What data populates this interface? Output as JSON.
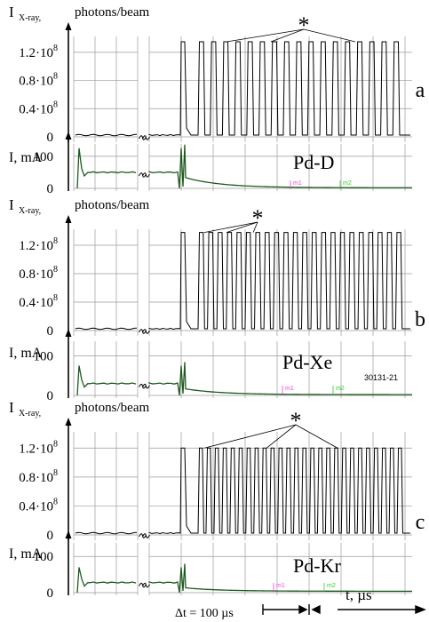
{
  "chart_data": [
    {
      "type": "line",
      "panel": "a",
      "xray": {
        "ylabel": "I",
        "ylabel_sub": "X-ray,",
        "unit": "photons/beam",
        "yticks": [
          "1.2·10",
          "0.8·10",
          "0.4·10",
          "0"
        ],
        "ytick_exp": "8",
        "ytick_values": [
          120000000.0,
          80000000.0,
          40000000.0,
          0
        ],
        "ylim": [
          0,
          140000000.0
        ],
        "star": "*",
        "pulses_after_discharge": 17,
        "pulse_level": 135000000.0
      },
      "current": {
        "ylabel": "I, mA",
        "yticks": [
          "100",
          "0"
        ],
        "ytick_values": [
          100,
          0
        ],
        "ylim": [
          0,
          130
        ],
        "label": "Pd-D",
        "markers": [
          "m1",
          "m2"
        ],
        "pre_level": 50,
        "peak": 125,
        "tail_level": 2
      },
      "panel_letter": "a"
    },
    {
      "type": "line",
      "panel": "b",
      "xray": {
        "ylabel": "I",
        "ylabel_sub": "X-ray,",
        "unit": "photons/beam",
        "yticks": [
          "1.2·10",
          "0.8·10",
          "0.4·10",
          "0"
        ],
        "ytick_exp": "8",
        "ytick_values": [
          120000000.0,
          80000000.0,
          40000000.0,
          0
        ],
        "ylim": [
          0,
          140000000.0
        ],
        "star": "*",
        "pulses_after_discharge": 22,
        "pulse_level": 138000000.0
      },
      "current": {
        "ylabel": "I, mA",
        "yticks": [
          "100",
          "0"
        ],
        "ytick_values": [
          100,
          0
        ],
        "ylim": [
          0,
          130
        ],
        "label": "Pd-Xe",
        "id_label": "30131-21",
        "markers": [
          "m1",
          "m2"
        ],
        "pre_level": 30,
        "peak": 75,
        "tail_level": 2
      },
      "panel_letter": "b"
    },
    {
      "type": "line",
      "panel": "c",
      "xray": {
        "ylabel": "I",
        "ylabel_sub": "X-ray,",
        "unit": "photons/beam",
        "yticks": [
          "1.2·10",
          "0.8·10",
          "0.4·10",
          "0"
        ],
        "ytick_exp": "8",
        "ytick_values": [
          120000000.0,
          80000000.0,
          40000000.0,
          0
        ],
        "ylim": [
          0,
          140000000.0
        ],
        "star": "*",
        "pulses_after_discharge": 26,
        "pulse_level": 120000000.0
      },
      "current": {
        "ylabel": "I, mA",
        "yticks": [
          "100",
          "0"
        ],
        "ytick_values": [
          100,
          0
        ],
        "ylim": [
          0,
          130
        ],
        "label": "Pd-Kr",
        "markers": [
          "m1",
          "m2"
        ],
        "pre_level": 28,
        "peak": 70,
        "tail_level": 4
      },
      "panel_letter": "c"
    }
  ],
  "footer": {
    "delta_t": "Δt = 100 µs",
    "time_axis": "t, µs"
  },
  "colors": {
    "trace": "#000000",
    "current_trace": "#1e5a1e",
    "marker": "#ff3bd8",
    "marker2": "#33cc33",
    "grid": "#9a9a9a"
  }
}
